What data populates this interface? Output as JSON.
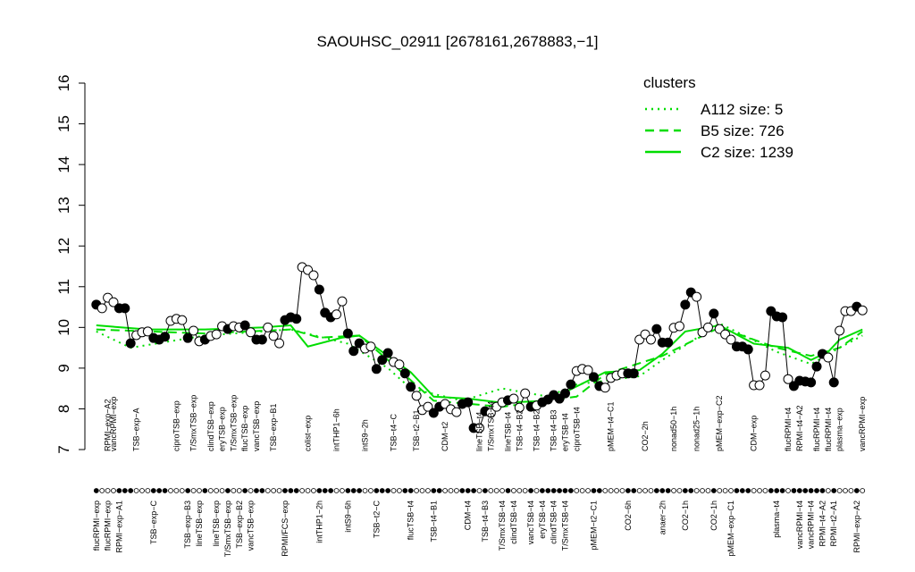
{
  "chart_data": {
    "type": "scatter",
    "title": "SAOUHSC_02911 [2678161,2678883,−1]",
    "ylim": [
      7,
      16
    ],
    "yticks": [
      7,
      8,
      9,
      10,
      11,
      12,
      13,
      14,
      15,
      16
    ],
    "xlim": [
      -1,
      137
    ],
    "x": [
      1,
      2,
      3,
      4,
      5,
      6,
      7,
      8,
      9,
      10,
      11,
      12,
      13,
      14,
      15,
      16,
      17,
      18,
      19,
      20,
      21,
      22,
      23,
      24,
      25,
      26,
      27,
      28,
      29,
      30,
      31,
      32,
      33,
      34,
      35,
      36,
      37,
      38,
      39,
      40,
      41,
      42,
      43,
      44,
      45,
      46,
      47,
      48,
      49,
      50,
      51,
      52,
      53,
      54,
      55,
      56,
      57,
      58,
      59,
      60,
      61,
      62,
      63,
      64,
      65,
      66,
      67,
      68,
      69,
      70,
      71,
      72,
      73,
      74,
      75,
      76,
      77,
      78,
      79,
      80,
      81,
      82,
      83,
      84,
      85,
      86,
      87,
      88,
      89,
      90,
      91,
      92,
      93,
      94,
      95,
      96,
      97,
      98,
      99,
      100,
      101,
      102,
      103,
      104,
      105,
      106,
      107,
      108,
      109,
      110,
      111,
      112,
      113,
      114,
      115,
      116,
      117,
      118,
      119,
      120,
      121,
      122,
      123,
      124,
      125,
      126,
      127,
      128,
      129,
      130,
      131,
      132,
      133,
      134,
      135
    ],
    "values": [
      10.56,
      10.47,
      10.73,
      10.62,
      10.47,
      10.47,
      9.61,
      9.81,
      9.88,
      9.9,
      9.74,
      9.7,
      9.77,
      10.16,
      10.21,
      10.18,
      9.74,
      9.92,
      9.66,
      9.7,
      9.79,
      9.83,
      10.03,
      9.96,
      10.03,
      10.0,
      10.05,
      9.88,
      9.7,
      9.7,
      10.0,
      9.79,
      9.61,
      10.18,
      10.25,
      10.21,
      11.48,
      11.41,
      11.28,
      10.93,
      10.36,
      10.25,
      10.32,
      10.64,
      9.85,
      9.42,
      9.61,
      9.48,
      9.53,
      8.98,
      9.2,
      9.37,
      9.15,
      9.09,
      8.87,
      8.54,
      8.32,
      7.97,
      8.05,
      7.9,
      8.05,
      8.12,
      7.99,
      7.92,
      8.12,
      8.16,
      7.53,
      7.53,
      7.94,
      7.9,
      8.05,
      8.16,
      8.21,
      8.25,
      8.03,
      8.38,
      8.05,
      8.08,
      8.16,
      8.23,
      8.34,
      8.25,
      8.38,
      8.6,
      8.93,
      8.98,
      8.95,
      8.78,
      8.56,
      8.52,
      8.76,
      8.82,
      8.87,
      8.87,
      8.87,
      9.7,
      9.83,
      9.7,
      9.96,
      9.63,
      9.63,
      9.99,
      10.03,
      10.56,
      10.86,
      10.75,
      9.88,
      10.0,
      10.34,
      9.96,
      9.83,
      9.7,
      9.53,
      9.53,
      9.46,
      8.58,
      8.58,
      8.82,
      10.4,
      10.27,
      10.25,
      8.73,
      8.56,
      8.69,
      8.67,
      8.65,
      9.04,
      9.35,
      9.26,
      8.65,
      9.92,
      10.4,
      10.4,
      10.51,
      10.42
    ],
    "point_colors": [
      "#000000",
      "#ffffff",
      "#ffffff",
      "#ffffff",
      "#000000",
      "#000000",
      "#000000",
      "#ffffff",
      "#ffffff",
      "#ffffff",
      "#000000",
      "#000000",
      "#000000",
      "#ffffff",
      "#ffffff",
      "#ffffff",
      "#000000",
      "#ffffff",
      "#ffffff",
      "#000000",
      "#ffffff",
      "#ffffff",
      "#ffffff",
      "#000000",
      "#ffffff",
      "#ffffff",
      "#000000",
      "#ffffff",
      "#000000",
      "#000000",
      "#ffffff",
      "#ffffff",
      "#ffffff",
      "#000000",
      "#000000",
      "#000000",
      "#ffffff",
      "#ffffff",
      "#ffffff",
      "#000000",
      "#000000",
      "#000000",
      "#ffffff",
      "#ffffff",
      "#000000",
      "#000000",
      "#000000",
      "#ffffff",
      "#ffffff",
      "#000000",
      "#000000",
      "#000000",
      "#ffffff",
      "#ffffff",
      "#000000",
      "#000000",
      "#ffffff",
      "#ffffff",
      "#ffffff",
      "#000000",
      "#000000",
      "#ffffff",
      "#ffffff",
      "#ffffff",
      "#000000",
      "#000000",
      "#000000",
      "#ffffff",
      "#000000",
      "#ffffff",
      "#ffffff",
      "#ffffff",
      "#000000",
      "#ffffff",
      "#ffffff",
      "#ffffff",
      "#000000",
      "#ffffff",
      "#000000",
      "#000000",
      "#000000",
      "#000000",
      "#000000",
      "#000000",
      "#ffffff",
      "#ffffff",
      "#ffffff",
      "#000000",
      "#000000",
      "#ffffff",
      "#ffffff",
      "#ffffff",
      "#ffffff",
      "#000000",
      "#000000",
      "#ffffff",
      "#ffffff",
      "#ffffff",
      "#000000",
      "#000000",
      "#000000",
      "#ffffff",
      "#ffffff",
      "#000000",
      "#000000",
      "#ffffff",
      "#ffffff",
      "#ffffff",
      "#000000",
      "#ffffff",
      "#ffffff",
      "#ffffff",
      "#000000",
      "#000000",
      "#000000",
      "#ffffff",
      "#ffffff",
      "#ffffff",
      "#000000",
      "#000000",
      "#000000",
      "#ffffff",
      "#000000",
      "#000000",
      "#000000",
      "#000000",
      "#000000",
      "#000000",
      "#ffffff",
      "#000000",
      "#ffffff",
      "#ffffff",
      "#ffffff",
      "#000000",
      "#ffffff"
    ],
    "legend_title": "clusters",
    "legend_color": "#00dd00",
    "series": [
      {
        "name": "A112 size: 5",
        "color": "#00dd00",
        "dash": "dotted",
        "x": [
          1,
          7,
          20,
          35,
          45,
          52,
          56,
          65,
          72,
          80,
          85,
          96,
          100,
          110,
          120,
          126,
          131,
          135
        ],
        "values": [
          9.9,
          9.5,
          9.8,
          9.95,
          9.6,
          9.0,
          8.5,
          8.2,
          8.5,
          8.3,
          8.6,
          8.8,
          9.2,
          10.1,
          9.4,
          9.1,
          9.5,
          9.8
        ]
      },
      {
        "name": "B5 size: 726",
        "color": "#00dd00",
        "dash": "dashed",
        "x": [
          1,
          20,
          35,
          40,
          47,
          52,
          56,
          60,
          72,
          85,
          90,
          100,
          110,
          120,
          126,
          131,
          135
        ],
        "values": [
          9.95,
          9.85,
          9.95,
          9.75,
          9.8,
          9.2,
          8.7,
          8.2,
          8.05,
          8.3,
          8.85,
          9.3,
          10.0,
          9.5,
          9.3,
          9.5,
          9.9
        ]
      },
      {
        "name": "C2 size: 1239",
        "color": "#00dd00",
        "dash": "solid",
        "x": [
          1,
          10,
          20,
          30,
          35,
          38,
          44,
          47,
          52,
          56,
          60,
          66,
          72,
          80,
          85,
          90,
          96,
          100,
          104,
          110,
          116,
          122,
          126,
          129,
          131,
          135
        ],
        "values": [
          10.05,
          9.95,
          9.95,
          10.0,
          10.05,
          9.53,
          9.75,
          9.8,
          9.3,
          8.9,
          8.3,
          8.25,
          8.15,
          8.2,
          8.55,
          8.9,
          8.95,
          9.35,
          9.9,
          10.05,
          9.6,
          9.5,
          9.2,
          9.4,
          9.7,
          9.95
        ]
      }
    ],
    "sample_labels_top": [
      {
        "text": "RPMI−exp−A2",
        "x": 3
      },
      {
        "text": "vancRPMI−exp",
        "x": 4
      },
      {
        "text": "TSB−exp−A",
        "x": 8
      },
      {
        "text": "ciproTSB−exp",
        "x": 15
      },
      {
        "text": "T/SmxTSB−exp",
        "x": 18
      },
      {
        "text": "clindTSB−exp",
        "x": 21
      },
      {
        "text": "eryTSB−exp",
        "x": 23
      },
      {
        "text": "T/SmxTSB−exp",
        "x": 25
      },
      {
        "text": "flucTSB−exp",
        "x": 27
      },
      {
        "text": "vancTSB−exp",
        "x": 29
      },
      {
        "text": "TSB−exp−B1",
        "x": 32
      },
      {
        "text": "colist−exp",
        "x": 38
      },
      {
        "text": "intTHP1−6h",
        "x": 43
      },
      {
        "text": "intS9−2h",
        "x": 48
      },
      {
        "text": "TSB−t4−C",
        "x": 53
      },
      {
        "text": "TSB−t2−B1",
        "x": 57
      },
      {
        "text": "CDM−t2",
        "x": 62
      },
      {
        "text": "lineTSB−t4",
        "x": 68
      },
      {
        "text": "T/SmxTSB−t4",
        "x": 70
      },
      {
        "text": "lineTSB−t4",
        "x": 73
      },
      {
        "text": "TSB−t4−B2",
        "x": 75
      },
      {
        "text": "TSB−t4−B2",
        "x": 78
      },
      {
        "text": "TSB−t4−B3",
        "x": 81
      },
      {
        "text": "eryTSB−t4",
        "x": 83
      },
      {
        "text": "ciproTSB−t4",
        "x": 85
      },
      {
        "text": "pMEM−t4−C1",
        "x": 91
      },
      {
        "text": "CO2−2h",
        "x": 97
      },
      {
        "text": "nonad50−1h",
        "x": 102
      },
      {
        "text": "nonad25−1h",
        "x": 106
      },
      {
        "text": "pMEM−exp−C2",
        "x": 110
      },
      {
        "text": "CDM−exp",
        "x": 116
      },
      {
        "text": "flucRPMI−t4",
        "x": 122
      },
      {
        "text": "RPMI−t4−A2",
        "x": 124
      },
      {
        "text": "flucRPMI−t4",
        "x": 127
      },
      {
        "text": "flucRPMI−t4",
        "x": 129
      },
      {
        "text": "plasma−exp",
        "x": 131
      },
      {
        "text": "vancRPMI−exp",
        "x": 135
      }
    ],
    "sample_labels_bottom": [
      {
        "text": "flucRPMI−exp",
        "x": 1
      },
      {
        "text": "flucRPMI−exp",
        "x": 3
      },
      {
        "text": "RPMI−exp−A1",
        "x": 5
      },
      {
        "text": "TSB−exp−C",
        "x": 11
      },
      {
        "text": "TSB−exp−B3",
        "x": 17
      },
      {
        "text": "lineTSB−exp",
        "x": 19
      },
      {
        "text": "lineTSB−exp",
        "x": 22
      },
      {
        "text": "T/SmxTSB−exp",
        "x": 24
      },
      {
        "text": "TSB−exp−B2",
        "x": 26
      },
      {
        "text": "vancTSB−exp",
        "x": 28
      },
      {
        "text": "RPMI/FCS−exp",
        "x": 34
      },
      {
        "text": "intTHP1−2h",
        "x": 40
      },
      {
        "text": "intS9−6h",
        "x": 45
      },
      {
        "text": "TSB−t2−C",
        "x": 50
      },
      {
        "text": "flucTSB−t4",
        "x": 56
      },
      {
        "text": "TSB−t4−B1",
        "x": 60
      },
      {
        "text": "CDM−t4",
        "x": 66
      },
      {
        "text": "TSB−t4−B3",
        "x": 69
      },
      {
        "text": "T/SmxTSB−t4",
        "x": 72
      },
      {
        "text": "clindTSB−t4",
        "x": 74
      },
      {
        "text": "vancTSB−t4",
        "x": 77
      },
      {
        "text": "eryTSB−t4",
        "x": 79
      },
      {
        "text": "clindTSB−t4",
        "x": 81
      },
      {
        "text": "T/SmxTSB−t4",
        "x": 83
      },
      {
        "text": "pMEM−t2−C1",
        "x": 88
      },
      {
        "text": "CO2−6h",
        "x": 94
      },
      {
        "text": "anaer−2h",
        "x": 100
      },
      {
        "text": "CO2−1h",
        "x": 104
      },
      {
        "text": "CO2−1h",
        "x": 109
      },
      {
        "text": "pMEM−exp−C1",
        "x": 112
      },
      {
        "text": "plasma−t4",
        "x": 120
      },
      {
        "text": "vancRPMI−t4",
        "x": 124
      },
      {
        "text": "vancRPMI−t4",
        "x": 126
      },
      {
        "text": "RPMI−t4−A2",
        "x": 128
      },
      {
        "text": "RPMI−t2−A1",
        "x": 130
      },
      {
        "text": "RPMI−exp−A2",
        "x": 134
      }
    ]
  }
}
